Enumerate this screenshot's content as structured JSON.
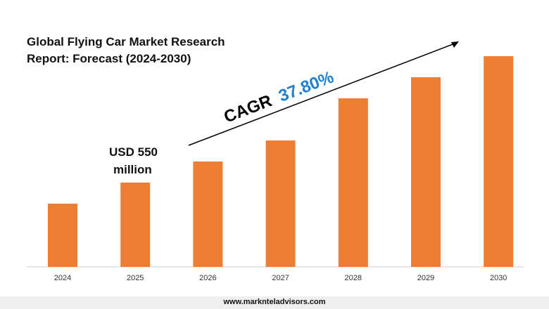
{
  "title": "Global Flying Car Market Research\nReport: Forecast (2024-2030)",
  "annotations": {
    "base_value_line1": "USD 550",
    "base_value_line2": "million",
    "cagr_label": "CAGR",
    "cagr_value": "37.80%"
  },
  "footer": {
    "url": "www.marknteladvisors.com"
  },
  "colors": {
    "bar": "#ed7d31",
    "cagr_value": "#1f7fd0",
    "arrow": "#000000"
  },
  "chart_data": {
    "type": "bar",
    "title": "Global Flying Car Market Research Report: Forecast (2024-2030)",
    "categories": [
      "2024",
      "2025",
      "2026",
      "2027",
      "2028",
      "2029",
      "2030"
    ],
    "values": [
      90,
      120,
      150,
      180,
      240,
      270,
      300
    ],
    "ylim": [
      0,
      300
    ],
    "grid": false,
    "legend": "none"
  }
}
